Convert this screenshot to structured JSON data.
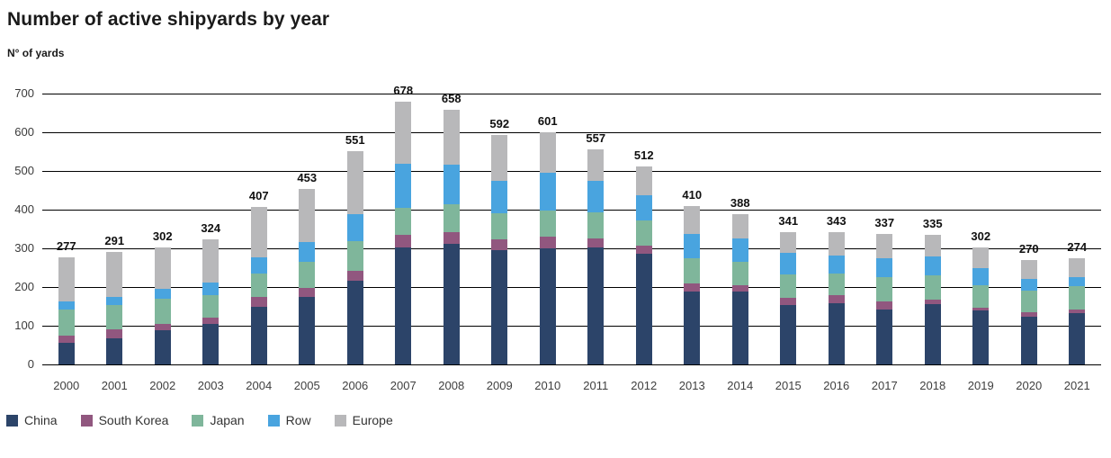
{
  "title": "Number of active shipyards by year",
  "subtitle": "N° of yards",
  "colors": {
    "china": "#2c4469",
    "south_korea": "#91577f",
    "japan": "#7fb69b",
    "row": "#49a4df",
    "europe": "#b8b8ba",
    "grid": "#000000",
    "title_text": "#1a1a1a",
    "axis_text": "#3b3b3b"
  },
  "chart_data": {
    "type": "bar",
    "stacked": true,
    "stack_order": "bottom-to-top",
    "title": "Number of active shipyards by year",
    "ylabel": "N° of yards",
    "xlabel": "",
    "ylim": [
      0,
      700
    ],
    "yticks": [
      0,
      100,
      200,
      300,
      400,
      500,
      600,
      700
    ],
    "grid": "horizontal",
    "legend_position": "bottom-left",
    "categories": [
      "2000",
      "2001",
      "2002",
      "2003",
      "2004",
      "2005",
      "2006",
      "2007",
      "2008",
      "2009",
      "2010",
      "2011",
      "2012",
      "2013",
      "2014",
      "2015",
      "2016",
      "2017",
      "2018",
      "2019",
      "2020",
      "2021"
    ],
    "totals": [
      277,
      291,
      302,
      324,
      407,
      453,
      551,
      678,
      658,
      592,
      601,
      557,
      512,
      410,
      388,
      341,
      343,
      337,
      335,
      302,
      270,
      274
    ],
    "series": [
      {
        "name": "China",
        "color_key": "china",
        "values": [
          55,
          67,
          88,
          105,
          150,
          174,
          217,
          302,
          311,
          295,
          300,
          302,
          286,
          188,
          188,
          153,
          159,
          143,
          155,
          140,
          124,
          132
        ]
      },
      {
        "name": "South Korea",
        "color_key": "south_korea",
        "values": [
          19,
          23,
          17,
          16,
          24,
          24,
          25,
          33,
          32,
          29,
          31,
          23,
          21,
          21,
          17,
          18,
          21,
          21,
          13,
          7,
          10,
          9
        ]
      },
      {
        "name": "Japan",
        "color_key": "japan",
        "values": [
          67,
          63,
          65,
          57,
          62,
          67,
          76,
          70,
          72,
          67,
          67,
          69,
          65,
          65,
          61,
          62,
          54,
          61,
          62,
          57,
          56,
          61
        ]
      },
      {
        "name": "Row",
        "color_key": "row",
        "values": [
          23,
          21,
          25,
          34,
          41,
          52,
          70,
          114,
          101,
          83,
          98,
          81,
          65,
          63,
          60,
          55,
          47,
          50,
          49,
          44,
          31,
          23
        ]
      },
      {
        "name": "Europe",
        "color_key": "europe",
        "values": [
          113,
          117,
          107,
          112,
          130,
          136,
          163,
          159,
          142,
          118,
          105,
          82,
          75,
          73,
          62,
          53,
          62,
          62,
          56,
          54,
          49,
          49
        ]
      }
    ]
  },
  "legend": {
    "items": [
      "China",
      "South Korea",
      "Japan",
      "Row",
      "Europe"
    ]
  }
}
